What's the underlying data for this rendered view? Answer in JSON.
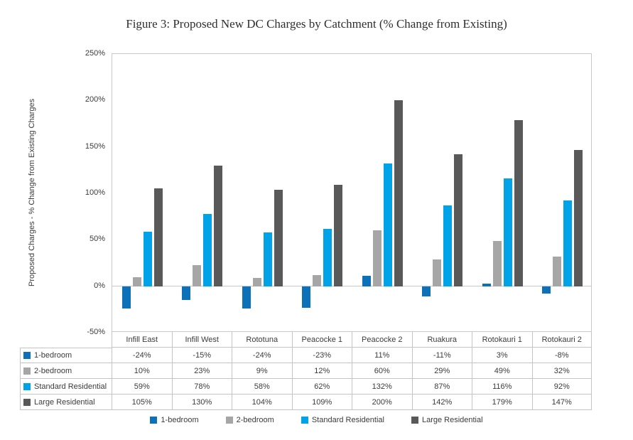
{
  "chart_data": {
    "type": "bar",
    "title": "Figure 3: Proposed New DC Charges by Catchment (% Change from Existing)",
    "xlabel": "",
    "ylabel": "Proposed Charges - % Change from Existing Charges",
    "ylim": [
      -50,
      250
    ],
    "ytick_labels": [
      "250%",
      "200%",
      "150%",
      "100%",
      "50%",
      "0%",
      "-50%"
    ],
    "grid": false,
    "legend_position": "bottom",
    "value_suffix": "%",
    "categories": [
      "Infill East",
      "Infill West",
      "Rototuna",
      "Peacocke 1",
      "Peacocke 2",
      "Ruakura",
      "Rotokauri 1",
      "Rotokauri 2"
    ],
    "series": [
      {
        "name": "1-bedroom",
        "color": "#0d71ba",
        "values": [
          -24,
          -15,
          -24,
          -23,
          11,
          -11,
          3,
          -8
        ]
      },
      {
        "name": "2-bedroom",
        "color": "#a6a6a6",
        "values": [
          10,
          23,
          9,
          12,
          60,
          29,
          49,
          32
        ]
      },
      {
        "name": "Standard Residential",
        "color": "#00a2e8",
        "values": [
          59,
          78,
          58,
          62,
          132,
          87,
          116,
          92
        ]
      },
      {
        "name": "Large Residential",
        "color": "#595959",
        "values": [
          105,
          130,
          104,
          109,
          200,
          142,
          179,
          147
        ]
      }
    ]
  }
}
